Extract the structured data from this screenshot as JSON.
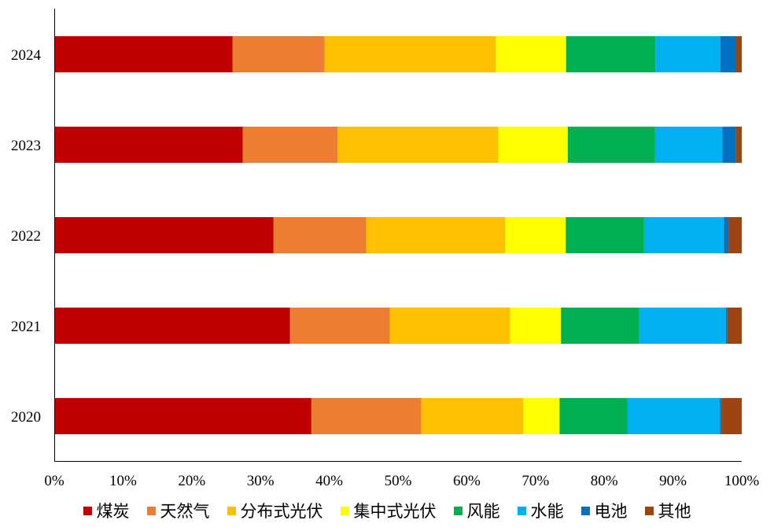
{
  "chart_data": {
    "type": "bar",
    "orientation": "horizontal",
    "stacked": true,
    "title": "",
    "xlabel": "",
    "ylabel": "",
    "xlim": [
      0,
      1
    ],
    "x_ticks": [
      "0%",
      "10%",
      "20%",
      "30%",
      "40%",
      "50%",
      "60%",
      "70%",
      "80%",
      "90%",
      "100%"
    ],
    "categories": [
      "2024",
      "2023",
      "2022",
      "2021",
      "2020"
    ],
    "grid": false,
    "legend_position": "bottom",
    "series": [
      {
        "name": "煤炭",
        "color": "#C00000",
        "values": [
          0.26,
          0.274,
          0.319,
          0.343,
          0.374
        ]
      },
      {
        "name": "天然气",
        "color": "#ED7D31",
        "values": [
          0.134,
          0.138,
          0.135,
          0.145,
          0.16
        ]
      },
      {
        "name": "分布式光伏",
        "color": "#FFC000",
        "values": [
          0.25,
          0.234,
          0.202,
          0.175,
          0.148
        ]
      },
      {
        "name": "集中式光伏",
        "color": "#FFFF00",
        "values": [
          0.102,
          0.101,
          0.088,
          0.074,
          0.053
        ]
      },
      {
        "name": "风能",
        "color": "#00B050",
        "values": [
          0.13,
          0.127,
          0.114,
          0.114,
          0.099
        ]
      },
      {
        "name": "水能",
        "color": "#00B0F0",
        "values": [
          0.095,
          0.098,
          0.116,
          0.126,
          0.134
        ]
      },
      {
        "name": "电池",
        "color": "#0070C0",
        "values": [
          0.023,
          0.019,
          0.007,
          0.002,
          0.002
        ]
      },
      {
        "name": "其他",
        "color": "#9C4510",
        "values": [
          0.008,
          0.009,
          0.019,
          0.021,
          0.03
        ]
      }
    ]
  }
}
